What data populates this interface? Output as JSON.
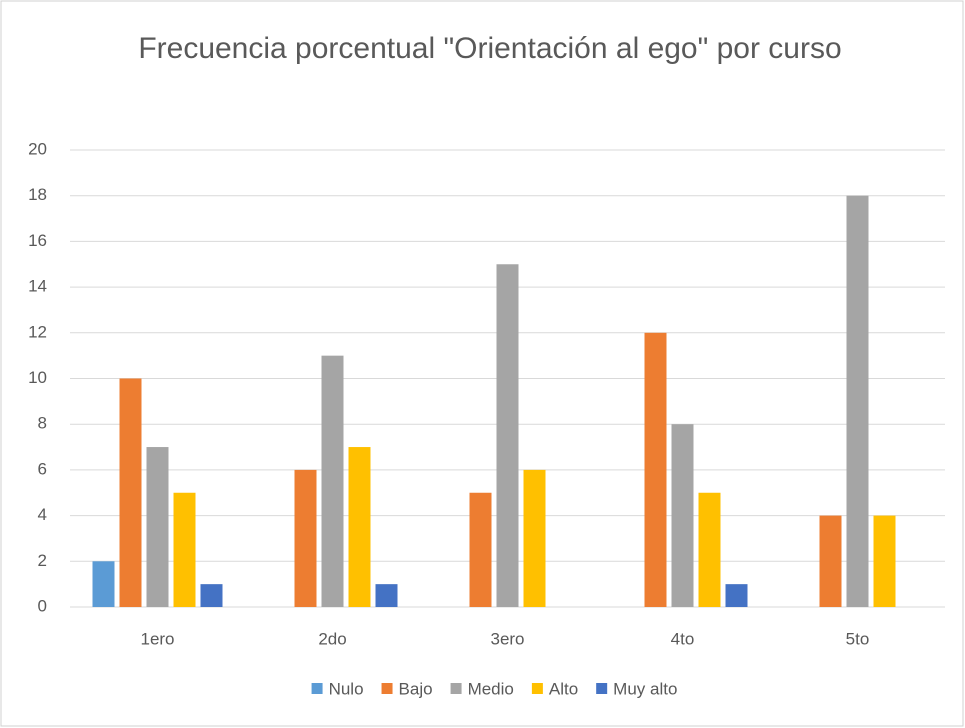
{
  "chart_data": {
    "type": "bar",
    "title": "Frecuencia porcentual \"Orientación al ego\" por curso",
    "categories": [
      "1ero",
      "2do",
      "3ero",
      "4to",
      "5to"
    ],
    "series": [
      {
        "name": "Nulo",
        "color": "#5b9bd5",
        "values": [
          2,
          0,
          0,
          0,
          0
        ]
      },
      {
        "name": "Bajo",
        "color": "#ed7d31",
        "values": [
          10,
          6,
          5,
          12,
          4
        ]
      },
      {
        "name": "Medio",
        "color": "#a5a5a5",
        "values": [
          7,
          11,
          15,
          8,
          18
        ]
      },
      {
        "name": "Alto",
        "color": "#ffc000",
        "values": [
          5,
          7,
          6,
          5,
          4
        ]
      },
      {
        "name": "Muy alto",
        "color": "#4472c4",
        "values": [
          1,
          1,
          0,
          1,
          0
        ]
      }
    ],
    "ylim": [
      0,
      20
    ],
    "yticks": [
      0,
      2,
      4,
      6,
      8,
      10,
      12,
      14,
      16,
      18,
      20
    ],
    "grid": true,
    "legend": "bottom"
  }
}
